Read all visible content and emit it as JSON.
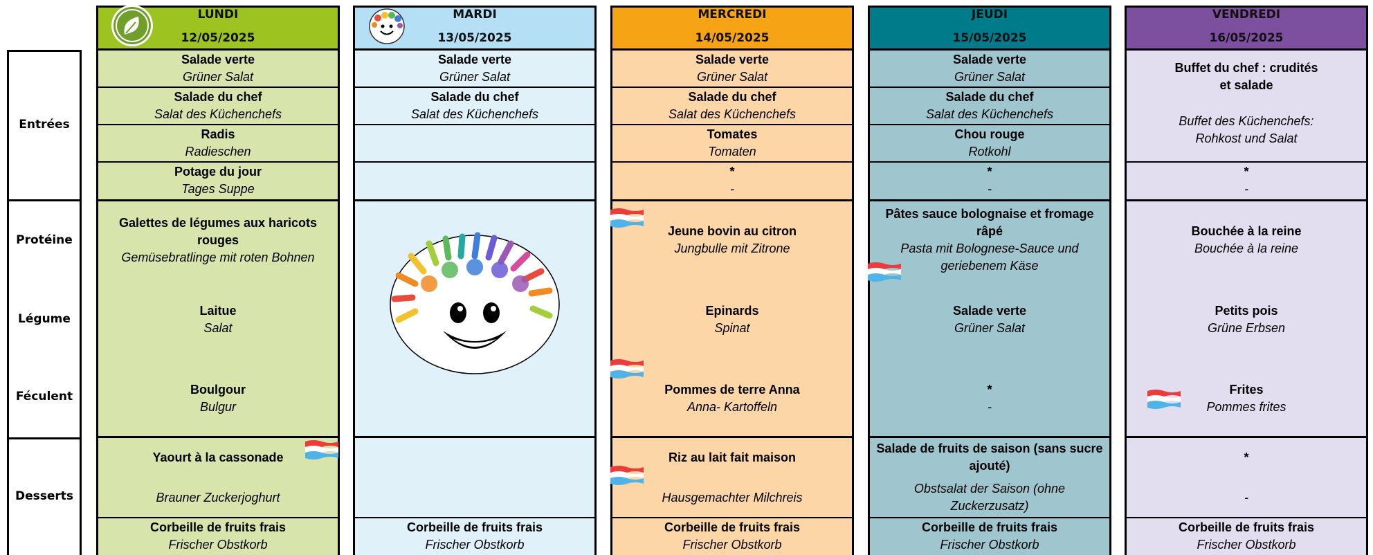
{
  "row_labels": [
    "Entrées",
    "Protéine",
    "Légume",
    "Féculent",
    "Desserts"
  ],
  "days": [
    {
      "name": "LUNDI",
      "date": "12/05/2025",
      "header_color": "#9cc31f",
      "body_color": "#d7e4ab",
      "entrees": [
        {
          "fr": "Salade verte",
          "de": "Grüner Salat"
        },
        {
          "fr": "Salade du chef",
          "de": "Salat des Küchenchefs"
        },
        {
          "fr": "Radis",
          "de": "Radieschen"
        },
        {
          "fr": "Potage du jour",
          "de": "Tages Suppe"
        }
      ],
      "protein": {
        "fr": "Galettes de légumes aux haricots rouges",
        "de": "Gemüsebratlinge mit roten Bohnen"
      },
      "legume": {
        "fr": "Laitue",
        "de": "Salat"
      },
      "feculent": {
        "fr": "Boulgour",
        "de": "Bulgur"
      },
      "dessert": {
        "fr": "Yaourt à la cassonade",
        "de": "Brauner Zuckerjoghurt"
      },
      "fruit": {
        "fr": "Corbeille de fruits frais",
        "de": "Frischer Obstkorb"
      }
    },
    {
      "name": "MARDI",
      "date": "13/05/2025",
      "header_color": "#b5dff4",
      "body_color": "#e1f1fa",
      "entrees": [
        {
          "fr": "Salade verte",
          "de": "Grüner Salat"
        },
        {
          "fr": "Salade du chef",
          "de": "Salat des Küchenchefs"
        }
      ],
      "fruit": {
        "fr": "Corbeille de fruits frais",
        "de": "Frischer Obstkorb"
      }
    },
    {
      "name": "MERCREDI",
      "date": "14/05/2025",
      "header_color": "#f6a315",
      "body_color": "#fcd6a6",
      "entrees": [
        {
          "fr": "Salade verte",
          "de": "Grüner Salat"
        },
        {
          "fr": "Salade du chef",
          "de": "Salat des Küchenchefs"
        },
        {
          "fr": "Tomates",
          "de": "Tomaten"
        },
        {
          "fr": "*",
          "de": "-"
        }
      ],
      "protein": {
        "fr": "Jeune bovin au citron",
        "de": "Jungbulle mit Zitrone"
      },
      "legume": {
        "fr": "Epinards",
        "de": "Spinat"
      },
      "feculent": {
        "fr": "Pommes de terre Anna",
        "de": "Anna- Kartoffeln"
      },
      "dessert": {
        "fr": "Riz au lait fait maison",
        "de": "Hausgemachter Milchreis"
      },
      "fruit": {
        "fr": "Corbeille de fruits frais",
        "de": "Frischer Obstkorb"
      }
    },
    {
      "name": "JEUDI",
      "date": "15/05/2025",
      "header_color": "#007b89",
      "body_color": "#9fc6cf",
      "entrees": [
        {
          "fr": "Salade verte",
          "de": "Grüner Salat"
        },
        {
          "fr": "Salade du chef",
          "de": "Salat des Küchenchefs"
        },
        {
          "fr": "Chou rouge",
          "de": "Rotkohl"
        },
        {
          "fr": "*",
          "de": "-"
        }
      ],
      "protein": {
        "fr": "Pâtes sauce bolognaise et fromage râpé",
        "de": "Pasta mit Bolognese-Sauce und geriebenem Käse"
      },
      "legume": {
        "fr": "Salade verte",
        "de": "Grüner Salat"
      },
      "feculent": {
        "fr": "*",
        "de": "-"
      },
      "dessert": {
        "fr": "Salade de fruits de saison (sans sucre ajouté)",
        "de": "Obstsalat der Saison (ohne Zuckerzusatz)"
      },
      "fruit": {
        "fr": "Corbeille de fruits frais",
        "de": "Frischer Obstkorb"
      }
    },
    {
      "name": "VENDREDI",
      "date": "16/05/2025",
      "header_color": "#7c4f9f",
      "body_color": "#e2ddef",
      "entrees": [
        {
          "fr": "Buffet du chef : crudités et salade",
          "de": "Buffet des Küchenchefs: Rohkost und Salat"
        },
        {
          "fr": "*",
          "de": "-"
        }
      ],
      "protein": {
        "fr": "Bouchée à la reine",
        "de": "Bouchée à la reine"
      },
      "legume": {
        "fr": "Petits pois",
        "de": "Grüne Erbsen"
      },
      "feculent": {
        "fr": "Frites",
        "de": "Pommes frites"
      },
      "dessert": {
        "fr": "*",
        "de": "-"
      },
      "fruit": {
        "fr": "Corbeille de fruits frais",
        "de": "Frischer Obstkorb"
      }
    }
  ]
}
